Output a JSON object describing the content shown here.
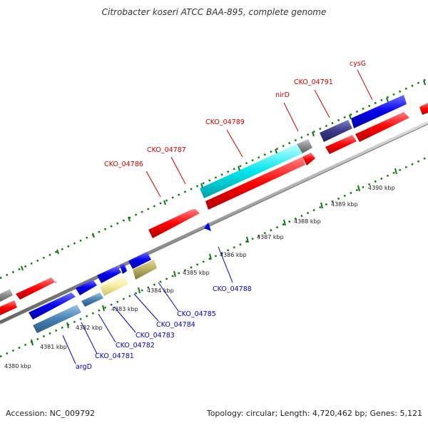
{
  "title": "Citrobacter koseri ATCC BAA-895, complete genome",
  "footer": {
    "accession": "Accession: NC_009792",
    "summary": "Topology: circular; Length: 4,720,462 bp; Genes: 5,121"
  },
  "scale_labels": [
    "4380 kbp",
    "4381 kbp",
    "4382 kbp",
    "4383 kbp",
    "4384 kbp",
    "4385 kbp",
    "4386 kbp",
    "4387 kbp",
    "4388 kbp",
    "4389 kbp",
    "4390 kbp"
  ],
  "forward_labels": [
    "CKO_04786",
    "CKO_04787",
    "CKO_04789",
    "nirD",
    "CKO_04791",
    "cysG"
  ],
  "reverse_labels": [
    "CKO_04788",
    "CKO_04785",
    "CKO_04784",
    "CKO_04783",
    "CKO_04782",
    "CKO_04781",
    "argD"
  ],
  "colors": {
    "forward_label": "#cc0000",
    "reverse_label": "#0000cc",
    "red_feature": "#ff0000",
    "blue_feature": "#0000ee",
    "cyan_feature": "#00e6ee",
    "navy_feature": "#3a3a88",
    "steel_feature": "#4682b4",
    "khaki_feature": "#b5ad60",
    "pale_feature": "#f4eea0",
    "backbone": "#999999",
    "tick": "#117711"
  }
}
